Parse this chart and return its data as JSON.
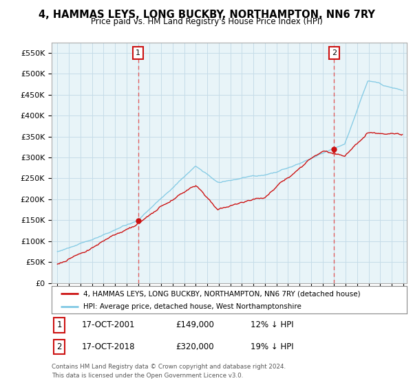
{
  "title": "4, HAMMAS LEYS, LONG BUCKBY, NORTHAMPTON, NN6 7RY",
  "subtitle": "Price paid vs. HM Land Registry's House Price Index (HPI)",
  "ylabel_ticks": [
    "£0",
    "£50K",
    "£100K",
    "£150K",
    "£200K",
    "£250K",
    "£300K",
    "£350K",
    "£400K",
    "£450K",
    "£500K",
    "£550K"
  ],
  "ytick_values": [
    0,
    50000,
    100000,
    150000,
    200000,
    250000,
    300000,
    350000,
    400000,
    450000,
    500000,
    550000
  ],
  "ylim": [
    0,
    575000
  ],
  "hpi_color": "#7ec8e3",
  "price_color": "#cc1111",
  "vline_color": "#e05050",
  "marker1_year": 2002.0,
  "marker2_year": 2019.0,
  "marker1_price": 149000,
  "marker2_price": 320000,
  "legend_entry1": "4, HAMMAS LEYS, LONG BUCKBY, NORTHAMPTON, NN6 7RY (detached house)",
  "legend_entry2": "HPI: Average price, detached house, West Northamptonshire",
  "note1_num": "1",
  "note1_date": "17-OCT-2001",
  "note1_price": "£149,000",
  "note1_hpi": "12% ↓ HPI",
  "note2_num": "2",
  "note2_date": "17-OCT-2018",
  "note2_price": "£320,000",
  "note2_hpi": "19% ↓ HPI",
  "footer": "Contains HM Land Registry data © Crown copyright and database right 2024.\nThis data is licensed under the Open Government Licence v3.0.",
  "chart_bg": "#e8f4f8",
  "grid_color": "#c5dce8"
}
